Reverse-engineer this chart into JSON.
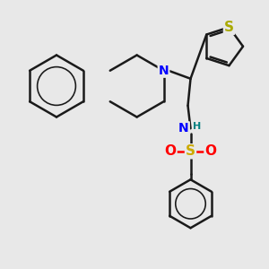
{
  "bg": "#e8e8e8",
  "bond_color": "#1a1a1a",
  "bw": 1.8,
  "atom_colors": {
    "N": "#0000ff",
    "S_sul": "#ccaa00",
    "S_thio": "#aaaa00",
    "O": "#ff0000",
    "H": "#008080"
  },
  "figsize": [
    3.0,
    3.0
  ],
  "dpi": 100
}
